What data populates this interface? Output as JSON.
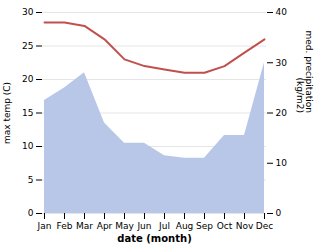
{
  "chart_data": {
    "type": "line",
    "xlabel": "date (month)",
    "ylabel": "max temp (C)",
    "y2label": "med. precipitation\n (kg/m2)",
    "categories": [
      "Jan",
      "Feb",
      "Mar",
      "Apr",
      "May",
      "Jun",
      "Jul",
      "Aug",
      "Sep",
      "Oct",
      "Nov",
      "Dec"
    ],
    "series": [
      {
        "type": "line",
        "color": "#c0504d",
        "values": [
          28.5,
          28.5,
          28.0,
          26.0,
          23.0,
          22.0,
          21.5,
          21.0,
          21.0,
          22.0,
          24.0,
          26.0
        ]
      },
      {
        "type": "area",
        "axis": "y2",
        "color": "#b8c7e8",
        "values": [
          22.5,
          25.0,
          28.0,
          18.0,
          14.0,
          14.0,
          11.5,
          11.0,
          11.0,
          15.5,
          15.5,
          30.0
        ]
      }
    ],
    "ylim": [
      0,
      30
    ],
    "yticks": [
      0,
      5,
      10,
      15,
      20,
      25,
      30
    ],
    "y2lim": [
      0,
      40
    ],
    "y2ticks": [
      0,
      10,
      20,
      30,
      40
    ],
    "grid": true
  }
}
